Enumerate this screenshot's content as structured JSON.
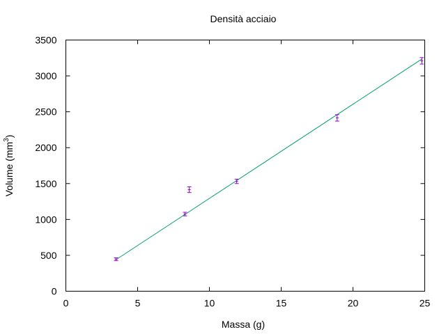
{
  "chart_data": {
    "type": "scatter",
    "title": "Densità acciaio",
    "xlabel": "Massa (g)",
    "ylabel_main": "Volume (mm",
    "ylabel_sup": "3",
    "ylabel_close": ")",
    "xlim": [
      0,
      25
    ],
    "ylim": [
      0,
      3500
    ],
    "x_ticks": [
      0,
      5,
      10,
      15,
      20,
      25
    ],
    "y_ticks": [
      0,
      500,
      1000,
      1500,
      2000,
      2500,
      3000,
      3500
    ],
    "grid": false,
    "points": [
      {
        "x": 3.5,
        "y": 445,
        "err": 20
      },
      {
        "x": 8.3,
        "y": 1075,
        "err": 25
      },
      {
        "x": 8.6,
        "y": 1415,
        "err": 40
      },
      {
        "x": 11.9,
        "y": 1530,
        "err": 30
      },
      {
        "x": 18.9,
        "y": 2415,
        "err": 45
      },
      {
        "x": 24.8,
        "y": 3210,
        "err": 45
      }
    ],
    "fit_line": {
      "x": [
        3.5,
        24.8
      ],
      "y": [
        440,
        3235
      ]
    },
    "colors": {
      "points": "#9400d3",
      "fit": "#009e73",
      "axes": "#000000"
    }
  }
}
